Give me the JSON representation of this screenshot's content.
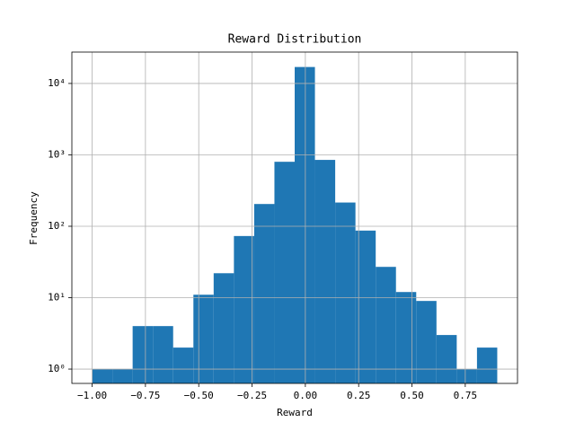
{
  "chart_data": {
    "type": "histogram",
    "title": "Reward Distribution",
    "x_label": "Reward",
    "y_label": "Frequency",
    "bins": [
      -1,
      -0.905,
      -0.81,
      -0.715,
      -0.62,
      -0.525,
      -0.43,
      -0.335,
      -0.24,
      -0.145,
      -0.05,
      0.045,
      0.14,
      0.235,
      0.33,
      0.425,
      0.52,
      0.615,
      0.71,
      0.805,
      0.9
    ],
    "values": [
      1,
      1,
      4,
      4,
      2,
      11,
      22,
      73,
      205,
      800,
      17000,
      850,
      215,
      87,
      27,
      12,
      9,
      3,
      1,
      2
    ],
    "color": "#1f77b4",
    "xlim": [
      -1.095,
      0.995
    ],
    "xticks": [
      {
        "value": -1,
        "label": "−1.00"
      },
      {
        "value": -0.75,
        "label": "−0.75"
      },
      {
        "value": -0.5,
        "label": "−0.50"
      },
      {
        "value": -0.25,
        "label": "−0.25"
      },
      {
        "value": 0,
        "label": "0.00"
      },
      {
        "value": 0.25,
        "label": "0.25"
      },
      {
        "value": 0.5,
        "label": "0.50"
      },
      {
        "value": 0.75,
        "label": "0.75"
      }
    ],
    "ylim": [
      0.63,
      27500
    ],
    "yticks": [
      {
        "value": 1,
        "label": "10⁰"
      },
      {
        "value": 10,
        "label": "10¹"
      },
      {
        "value": 100,
        "label": "10²"
      },
      {
        "value": 1000,
        "label": "10³"
      },
      {
        "value": 10000,
        "label": "10⁴"
      }
    ],
    "log_y": true,
    "grid": true
  }
}
